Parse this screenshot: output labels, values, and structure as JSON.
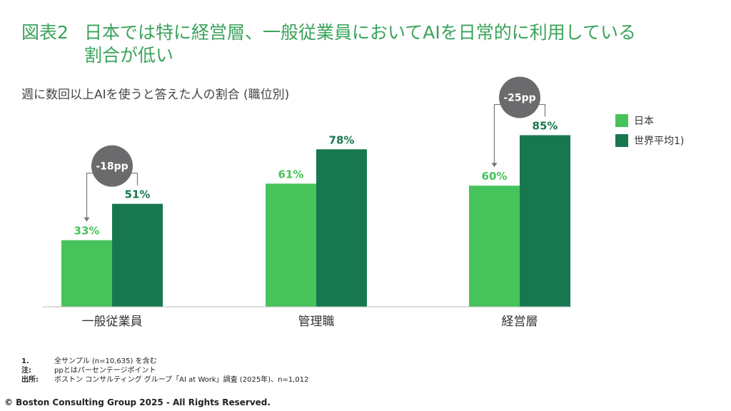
{
  "title": {
    "number": "図表2",
    "line1": "日本では特に経営層、一般従業員においてAIを日常的に利用している",
    "line2": "割合が低い"
  },
  "subtitle": "週に数回以上AIを使うと答えた人の割合 (職位別)",
  "colors": {
    "japan": "#46c35a",
    "global": "#17784f",
    "badge": "#6b6b6d",
    "japan_label": "#46c35a",
    "global_label": "#17784f"
  },
  "chart_data": {
    "type": "bar",
    "categories": [
      "一般従業員",
      "管理職",
      "経営層"
    ],
    "series": [
      {
        "name": "日本",
        "values": [
          33,
          61,
          60
        ],
        "labels": [
          "33%",
          "61%",
          "60%"
        ]
      },
      {
        "name": "世界平均1)",
        "values": [
          51,
          78,
          85
        ],
        "labels": [
          "51%",
          "78%",
          "85%"
        ]
      }
    ],
    "ylim": [
      0,
      100
    ],
    "legend": "top-right",
    "grid": false,
    "annotations": [
      {
        "category": "一般従業員",
        "text": "-18pp"
      },
      {
        "category": "経営層",
        "text": "-25pp"
      }
    ]
  },
  "notes": [
    {
      "key": "1.",
      "text": "全サンプル (n=10,635) を含む"
    },
    {
      "key": "注:",
      "text": "ppとはパーセンテージポイント"
    },
    {
      "key": "出所:",
      "text": "ボストン コンサルティング グループ「AI at Work」調査 (2025年)、n=1,012"
    }
  ],
  "copyright": "© Boston Consulting Group 2025 - All Rights Reserved."
}
